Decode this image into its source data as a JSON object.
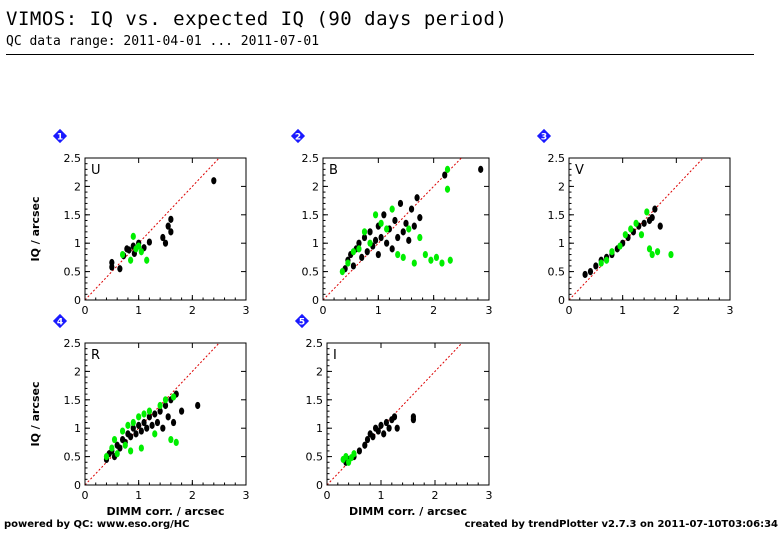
{
  "page": {
    "title": "VIMOS: IQ vs. expected IQ (90 days period)",
    "subtitle": "QC data range: 2011-04-01 ... 2011-07-01",
    "footer_left": "powered by QC: www.eso.org/HC",
    "footer_right": "created by trendPlotter v2.7.3 on 2011-07-10T03:06:34"
  },
  "colors": {
    "black_series": "#000000",
    "green_series": "#00ee00",
    "reference_line": "#dd0000",
    "marker": "#1a1aff"
  },
  "chart_data": [
    {
      "type": "scatter",
      "marker_number": "1",
      "panel_label": "U",
      "xlim": [
        0,
        3
      ],
      "ylim": [
        0,
        2.5
      ],
      "xticks": [
        "0",
        "1",
        "2",
        "3"
      ],
      "yticks": [
        "0",
        "0.5",
        "1",
        "1.5",
        "2",
        "2.5"
      ],
      "xlabel": "",
      "ylabel": "IQ / arcsec",
      "series": [
        {
          "color": "black",
          "points": [
            [
              0.5,
              0.58
            ],
            [
              0.5,
              0.66
            ],
            [
              0.65,
              0.55
            ],
            [
              0.72,
              0.78
            ],
            [
              0.78,
              0.9
            ],
            [
              0.82,
              0.88
            ],
            [
              0.9,
              0.95
            ],
            [
              0.92,
              0.82
            ],
            [
              1.0,
              1.0
            ],
            [
              1.1,
              0.92
            ],
            [
              1.2,
              1.02
            ],
            [
              1.45,
              1.1
            ],
            [
              1.5,
              1.0
            ],
            [
              1.55,
              1.3
            ],
            [
              1.6,
              1.42
            ],
            [
              1.6,
              1.2
            ],
            [
              2.4,
              2.1
            ]
          ]
        },
        {
          "color": "green",
          "points": [
            [
              0.7,
              0.8
            ],
            [
              0.85,
              0.7
            ],
            [
              0.95,
              0.9
            ],
            [
              1.05,
              0.85
            ],
            [
              1.15,
              0.7
            ],
            [
              0.9,
              1.12
            ],
            [
              1.0,
              0.95
            ]
          ]
        }
      ]
    },
    {
      "type": "scatter",
      "marker_number": "2",
      "panel_label": "B",
      "xlim": [
        0,
        3
      ],
      "ylim": [
        0,
        2.5
      ],
      "xticks": [
        "0",
        "1",
        "2",
        "3"
      ],
      "yticks": [
        "0",
        "0.5",
        "1",
        "1.5",
        "2",
        "2.5"
      ],
      "xlabel": "",
      "ylabel": "",
      "series": [
        {
          "color": "black",
          "points": [
            [
              0.4,
              0.55
            ],
            [
              0.45,
              0.7
            ],
            [
              0.5,
              0.8
            ],
            [
              0.55,
              0.6
            ],
            [
              0.6,
              0.9
            ],
            [
              0.65,
              1.0
            ],
            [
              0.7,
              0.75
            ],
            [
              0.75,
              1.1
            ],
            [
              0.8,
              0.85
            ],
            [
              0.85,
              1.2
            ],
            [
              0.9,
              0.95
            ],
            [
              0.95,
              1.05
            ],
            [
              1.0,
              1.3
            ],
            [
              1.0,
              0.8
            ],
            [
              1.05,
              1.1
            ],
            [
              1.1,
              1.5
            ],
            [
              1.15,
              1.0
            ],
            [
              1.2,
              1.25
            ],
            [
              1.25,
              0.9
            ],
            [
              1.3,
              1.4
            ],
            [
              1.35,
              1.1
            ],
            [
              1.4,
              1.7
            ],
            [
              1.45,
              1.2
            ],
            [
              1.5,
              1.35
            ],
            [
              1.55,
              1.05
            ],
            [
              1.6,
              1.6
            ],
            [
              1.65,
              1.3
            ],
            [
              1.7,
              1.8
            ],
            [
              1.75,
              1.45
            ],
            [
              2.2,
              2.2
            ],
            [
              2.85,
              2.3
            ]
          ]
        },
        {
          "color": "green",
          "points": [
            [
              0.35,
              0.5
            ],
            [
              0.45,
              0.65
            ],
            [
              0.55,
              0.85
            ],
            [
              0.65,
              0.9
            ],
            [
              0.75,
              1.2
            ],
            [
              0.85,
              1.0
            ],
            [
              0.95,
              1.5
            ],
            [
              1.05,
              1.35
            ],
            [
              1.15,
              1.25
            ],
            [
              1.25,
              1.6
            ],
            [
              1.35,
              0.8
            ],
            [
              1.45,
              0.75
            ],
            [
              1.55,
              1.25
            ],
            [
              1.65,
              0.65
            ],
            [
              1.75,
              1.1
            ],
            [
              1.85,
              0.8
            ],
            [
              1.95,
              0.7
            ],
            [
              2.05,
              0.75
            ],
            [
              2.15,
              0.65
            ],
            [
              2.25,
              2.3
            ],
            [
              2.3,
              0.7
            ],
            [
              2.25,
              1.95
            ]
          ]
        }
      ]
    },
    {
      "type": "scatter",
      "marker_number": "3",
      "panel_label": "V",
      "xlim": [
        0,
        3
      ],
      "ylim": [
        0,
        2.5
      ],
      "xticks": [
        "0",
        "1",
        "2",
        "3"
      ],
      "yticks": [
        "0",
        "0.5",
        "1",
        "1.5",
        "2",
        "2.5"
      ],
      "xlabel": "",
      "ylabel": "",
      "series": [
        {
          "color": "black",
          "points": [
            [
              0.3,
              0.45
            ],
            [
              0.4,
              0.5
            ],
            [
              0.5,
              0.6
            ],
            [
              0.6,
              0.7
            ],
            [
              0.7,
              0.75
            ],
            [
              0.8,
              0.8
            ],
            [
              0.9,
              0.9
            ],
            [
              1.0,
              1.0
            ],
            [
              1.1,
              1.1
            ],
            [
              1.2,
              1.2
            ],
            [
              1.3,
              1.3
            ],
            [
              1.4,
              1.35
            ],
            [
              1.5,
              1.4
            ],
            [
              1.55,
              1.45
            ],
            [
              1.6,
              1.6
            ],
            [
              1.7,
              1.3
            ]
          ]
        },
        {
          "color": "green",
          "points": [
            [
              0.6,
              0.65
            ],
            [
              0.7,
              0.7
            ],
            [
              0.8,
              0.85
            ],
            [
              0.95,
              0.95
            ],
            [
              1.05,
              1.15
            ],
            [
              1.15,
              1.25
            ],
            [
              1.25,
              1.35
            ],
            [
              1.35,
              1.15
            ],
            [
              1.45,
              1.55
            ],
            [
              1.5,
              0.9
            ],
            [
              1.55,
              0.8
            ],
            [
              1.65,
              0.85
            ],
            [
              1.9,
              0.8
            ]
          ]
        }
      ]
    },
    {
      "type": "scatter",
      "marker_number": "4",
      "panel_label": "R",
      "xlim": [
        0,
        3
      ],
      "ylim": [
        0,
        2.5
      ],
      "xticks": [
        "0",
        "1",
        "2",
        "3"
      ],
      "yticks": [
        "0",
        "0.5",
        "1",
        "1.5",
        "2",
        "2.5"
      ],
      "xlabel": "DIMM corr. / arcsec",
      "ylabel": "IQ / arcsec",
      "series": [
        {
          "color": "black",
          "points": [
            [
              0.4,
              0.45
            ],
            [
              0.45,
              0.55
            ],
            [
              0.5,
              0.6
            ],
            [
              0.55,
              0.5
            ],
            [
              0.6,
              0.7
            ],
            [
              0.65,
              0.65
            ],
            [
              0.7,
              0.8
            ],
            [
              0.75,
              0.75
            ],
            [
              0.8,
              0.9
            ],
            [
              0.85,
              0.85
            ],
            [
              0.9,
              1.0
            ],
            [
              0.95,
              0.9
            ],
            [
              1.0,
              1.05
            ],
            [
              1.05,
              0.95
            ],
            [
              1.1,
              1.1
            ],
            [
              1.15,
              1.0
            ],
            [
              1.2,
              1.2
            ],
            [
              1.25,
              1.05
            ],
            [
              1.3,
              1.25
            ],
            [
              1.35,
              1.1
            ],
            [
              1.4,
              1.3
            ],
            [
              1.45,
              1.0
            ],
            [
              1.5,
              1.4
            ],
            [
              1.55,
              1.2
            ],
            [
              1.6,
              1.5
            ],
            [
              1.65,
              1.1
            ],
            [
              1.7,
              1.6
            ],
            [
              1.8,
              1.3
            ],
            [
              2.1,
              1.4
            ]
          ]
        },
        {
          "color": "green",
          "points": [
            [
              0.4,
              0.5
            ],
            [
              0.5,
              0.65
            ],
            [
              0.55,
              0.8
            ],
            [
              0.6,
              0.55
            ],
            [
              0.7,
              0.95
            ],
            [
              0.75,
              0.7
            ],
            [
              0.8,
              1.05
            ],
            [
              0.85,
              0.6
            ],
            [
              0.9,
              1.1
            ],
            [
              1.0,
              1.2
            ],
            [
              1.05,
              0.65
            ],
            [
              1.1,
              1.25
            ],
            [
              1.2,
              1.3
            ],
            [
              1.3,
              0.9
            ],
            [
              1.4,
              1.4
            ],
            [
              1.5,
              1.5
            ],
            [
              1.6,
              0.8
            ],
            [
              1.65,
              1.55
            ],
            [
              1.7,
              0.75
            ]
          ]
        }
      ]
    },
    {
      "type": "scatter",
      "marker_number": "5",
      "panel_label": "I",
      "xlim": [
        0,
        3
      ],
      "ylim": [
        0,
        2.5
      ],
      "xticks": [
        "0",
        "1",
        "2",
        "3"
      ],
      "yticks": [
        "0",
        "0.5",
        "1",
        "1.5",
        "2",
        "2.5"
      ],
      "xlabel": "DIMM corr. / arcsec",
      "ylabel": "",
      "series": [
        {
          "color": "black",
          "points": [
            [
              0.35,
              0.4
            ],
            [
              0.4,
              0.45
            ],
            [
              0.5,
              0.5
            ],
            [
              0.6,
              0.6
            ],
            [
              0.7,
              0.7
            ],
            [
              0.75,
              0.8
            ],
            [
              0.8,
              0.9
            ],
            [
              0.85,
              0.85
            ],
            [
              0.9,
              1.0
            ],
            [
              0.95,
              0.95
            ],
            [
              1.0,
              1.05
            ],
            [
              1.05,
              0.9
            ],
            [
              1.1,
              1.1
            ],
            [
              1.15,
              1.0
            ],
            [
              1.2,
              1.15
            ],
            [
              1.25,
              1.2
            ],
            [
              1.3,
              1.0
            ],
            [
              1.6,
              1.2
            ],
            [
              1.6,
              1.15
            ]
          ]
        },
        {
          "color": "green",
          "points": [
            [
              0.3,
              0.45
            ],
            [
              0.35,
              0.5
            ],
            [
              0.4,
              0.4
            ],
            [
              0.45,
              0.48
            ],
            [
              0.5,
              0.55
            ]
          ]
        }
      ]
    }
  ]
}
